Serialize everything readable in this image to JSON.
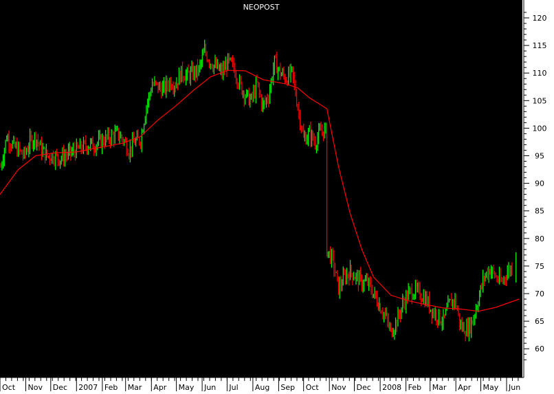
{
  "chart_data": {
    "type": "line",
    "title": "NEOPOST",
    "xlabel": "",
    "ylabel": "",
    "ylim": [
      55,
      122
    ],
    "y_ticks": [
      60,
      65,
      70,
      75,
      80,
      85,
      90,
      95,
      100,
      105,
      110,
      115,
      120
    ],
    "x_tick_labels": [
      "Oct",
      "Nov",
      "Dec",
      "2007",
      "Feb",
      "Mar",
      "Apr",
      "May",
      "Jun",
      "Jul",
      "Aug",
      "Sep",
      "Oct",
      "Nov",
      "Dec",
      "2008",
      "Feb",
      "Mar",
      "Apr",
      "May",
      "Jun"
    ],
    "x_start": "2006-10-01",
    "x_end": "2008-06-20",
    "grid": false,
    "colors": {
      "background": "#000000",
      "axis_panel": "#ffffff",
      "up_bar": "#00ff00",
      "down_bar": "#ff0000",
      "moving_average": "#ff0000",
      "title": "#ffffff"
    },
    "series": [
      {
        "kind": "price",
        "points": [
          [
            "2006-10-02",
            93
          ],
          [
            "2006-10-09",
            98.5
          ],
          [
            "2006-10-16",
            97
          ],
          [
            "2006-10-23",
            96
          ],
          [
            "2006-10-30",
            95
          ],
          [
            "2006-11-06",
            97.5
          ],
          [
            "2006-11-13",
            98.5
          ],
          [
            "2006-11-20",
            96
          ],
          [
            "2006-11-27",
            95
          ],
          [
            "2006-12-04",
            95
          ],
          [
            "2006-12-11",
            94.5
          ],
          [
            "2006-12-18",
            95
          ],
          [
            "2007-01-01",
            96
          ],
          [
            "2007-01-08",
            96.5
          ],
          [
            "2007-01-15",
            97
          ],
          [
            "2007-01-22",
            97
          ],
          [
            "2007-01-29",
            97.5
          ],
          [
            "2007-02-05",
            98
          ],
          [
            "2007-02-12",
            98.5
          ],
          [
            "2007-02-19",
            99
          ],
          [
            "2007-02-26",
            98
          ],
          [
            "2007-03-05",
            96
          ],
          [
            "2007-03-12",
            97.5
          ],
          [
            "2007-03-19",
            98
          ],
          [
            "2007-03-26",
            104
          ],
          [
            "2007-04-02",
            108
          ],
          [
            "2007-04-09",
            107.5
          ],
          [
            "2007-04-16",
            107
          ],
          [
            "2007-04-23",
            108.5
          ],
          [
            "2007-04-30",
            108
          ],
          [
            "2007-05-07",
            110
          ],
          [
            "2007-05-14",
            109.5
          ],
          [
            "2007-05-21",
            110
          ],
          [
            "2007-05-28",
            110.5
          ],
          [
            "2007-06-04",
            114
          ],
          [
            "2007-06-11",
            112
          ],
          [
            "2007-06-18",
            111
          ],
          [
            "2007-06-25",
            110
          ],
          [
            "2007-07-02",
            112
          ],
          [
            "2007-07-09",
            111
          ],
          [
            "2007-07-16",
            108
          ],
          [
            "2007-07-23",
            106
          ],
          [
            "2007-07-30",
            105
          ],
          [
            "2007-08-06",
            108
          ],
          [
            "2007-08-13",
            104
          ],
          [
            "2007-08-20",
            106
          ],
          [
            "2007-08-27",
            112
          ],
          [
            "2007-09-03",
            110
          ],
          [
            "2007-09-10",
            109
          ],
          [
            "2007-09-17",
            110
          ],
          [
            "2007-09-24",
            104
          ],
          [
            "2007-10-01",
            98
          ],
          [
            "2007-10-08",
            99
          ],
          [
            "2007-10-15",
            97.5
          ],
          [
            "2007-10-22",
            99.5
          ],
          [
            "2007-10-29",
            78
          ],
          [
            "2007-11-05",
            76
          ],
          [
            "2007-11-12",
            71
          ],
          [
            "2007-11-19",
            73
          ],
          [
            "2007-11-26",
            74
          ],
          [
            "2007-12-03",
            73
          ],
          [
            "2007-12-10",
            72
          ],
          [
            "2007-12-17",
            72
          ],
          [
            "2007-12-24",
            70
          ],
          [
            "2008-01-07",
            66
          ],
          [
            "2008-01-14",
            63
          ],
          [
            "2008-01-21",
            65
          ],
          [
            "2008-01-28",
            68
          ],
          [
            "2008-02-04",
            70
          ],
          [
            "2008-02-11",
            70.5
          ],
          [
            "2008-02-18",
            70
          ],
          [
            "2008-02-25",
            69
          ],
          [
            "2008-03-03",
            67
          ],
          [
            "2008-03-10",
            66
          ],
          [
            "2008-03-17",
            65
          ],
          [
            "2008-03-24",
            68
          ],
          [
            "2008-03-31",
            69
          ],
          [
            "2008-04-07",
            64
          ],
          [
            "2008-04-14",
            63.5
          ],
          [
            "2008-04-21",
            65
          ],
          [
            "2008-04-28",
            69
          ],
          [
            "2008-05-05",
            73
          ],
          [
            "2008-05-12",
            74.5
          ],
          [
            "2008-05-19",
            73
          ],
          [
            "2008-05-26",
            72
          ],
          [
            "2008-06-02",
            74
          ],
          [
            "2008-06-09",
            75
          ]
        ]
      },
      {
        "kind": "moving_average",
        "points": [
          [
            "2006-10-01",
            88
          ],
          [
            "2006-10-23",
            92.5
          ],
          [
            "2006-11-13",
            95
          ],
          [
            "2006-12-04",
            95.5
          ],
          [
            "2007-01-01",
            95.7
          ],
          [
            "2007-01-29",
            96.5
          ],
          [
            "2007-02-26",
            97.3
          ],
          [
            "2007-03-19",
            98.5
          ],
          [
            "2007-04-09",
            101.5
          ],
          [
            "2007-04-30",
            104
          ],
          [
            "2007-05-21",
            106.8
          ],
          [
            "2007-06-11",
            109.3
          ],
          [
            "2007-07-02",
            110.5
          ],
          [
            "2007-07-23",
            110.4
          ],
          [
            "2007-08-13",
            108.8
          ],
          [
            "2007-09-10",
            108
          ],
          [
            "2007-09-24",
            107.3
          ],
          [
            "2007-10-08",
            105.5
          ],
          [
            "2007-10-22",
            104.2
          ],
          [
            "2007-10-29",
            103.5
          ],
          [
            "2007-11-12",
            93
          ],
          [
            "2007-11-26",
            84.5
          ],
          [
            "2007-12-10",
            78
          ],
          [
            "2007-12-24",
            73
          ],
          [
            "2008-01-14",
            69.7
          ],
          [
            "2008-02-04",
            68.7
          ],
          [
            "2008-02-25",
            68
          ],
          [
            "2008-03-17",
            67.4
          ],
          [
            "2008-04-07",
            67.2
          ],
          [
            "2008-04-28",
            66.8
          ],
          [
            "2008-05-19",
            67.5
          ],
          [
            "2008-06-16",
            69
          ]
        ]
      }
    ]
  }
}
